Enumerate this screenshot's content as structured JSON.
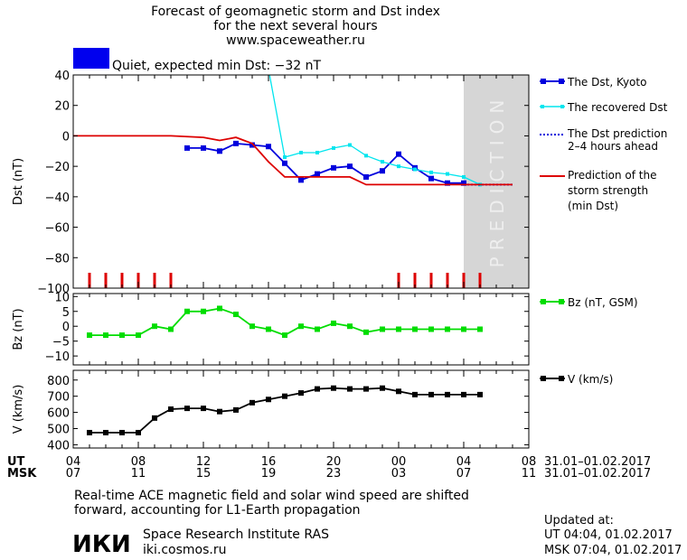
{
  "header": {
    "title_line1": "Forecast of geomagnetic storm and Dst index",
    "title_line2": "for the next several hours",
    "site": "www.spaceweather.ru",
    "status": "Quiet, expected min Dst: −32 nT",
    "status_color": "#0000ee"
  },
  "prediction_label": "PREDICTION",
  "footer": {
    "note_line1": "Real-time ACE magnetic field and solar wind speed are shifted",
    "note_line2": "forward, accounting for L1-Earth propagation",
    "institute_logo": "ИКИ",
    "institute": "Space Research Institute RAS",
    "institute_url": "iki.cosmos.ru",
    "updated_title": "Updated at:",
    "updated_ut": "UT   04:04, 01.02.2017",
    "updated_msk": "MSK 07:04, 01.02.2017"
  },
  "chart_data": [
    {
      "type": "line",
      "ylabel": "Dst (nT)",
      "ylim": [
        -100,
        40
      ],
      "yticks": [
        40,
        20,
        0,
        -20,
        -40,
        -60,
        -80,
        -100
      ],
      "xlim": [
        4,
        32
      ],
      "x_unit": "hours from 00 UT 31.01.2017",
      "prediction_start": 28,
      "series": [
        {
          "name": "The Dst, Kyoto",
          "color": "#0000dd",
          "marker": "square",
          "x": [
            11,
            12,
            13,
            14,
            15,
            16,
            17,
            18,
            19,
            20,
            21,
            22,
            23,
            24,
            25,
            26,
            27,
            28
          ],
          "y": [
            -8,
            -8,
            -10,
            -5,
            -6,
            -7,
            -18,
            -29,
            -25,
            -21,
            -20,
            -27,
            -23,
            -12,
            -21,
            -28,
            -31,
            -31
          ]
        },
        {
          "name": "The recovered Dst",
          "color": "#00e5ee",
          "marker": "dot",
          "x": [
            16,
            17,
            18,
            19,
            20,
            21,
            22,
            23,
            24,
            25,
            26,
            27,
            28,
            29
          ],
          "y": [
            44,
            -14,
            -11,
            -11,
            -8,
            -6,
            -13,
            -17,
            -20,
            -22,
            -24,
            -25,
            -27,
            -32
          ]
        },
        {
          "name": "The Dst prediction 2–4 hours ahead",
          "color": "#0000dd",
          "marker": "none",
          "style": "dotted",
          "x": [
            28,
            29,
            30,
            31
          ],
          "y": [
            -32,
            -32,
            -32,
            -32
          ]
        },
        {
          "name": "Prediction of the storm strength (min Dst)",
          "color": "#dd0000",
          "marker": "none",
          "x": [
            4,
            10,
            12,
            13,
            14,
            15,
            16,
            17,
            18,
            19,
            20,
            21,
            22,
            23,
            24,
            25,
            26,
            27,
            28,
            29,
            30,
            31
          ],
          "y": [
            0,
            0,
            -1,
            -3,
            -1,
            -5,
            -17,
            -27,
            -27,
            -27,
            -27,
            -27,
            -32,
            -32,
            -32,
            -32,
            -32,
            -32,
            -32,
            -32,
            -32,
            -32
          ]
        }
      ],
      "event_markers_x": [
        5,
        6,
        7,
        8,
        9,
        10,
        24,
        25,
        26,
        27,
        28,
        29
      ],
      "event_marker_color": "#dd0000"
    },
    {
      "type": "line",
      "ylabel": "Bz (nT)",
      "ylim": [
        -13,
        11
      ],
      "yticks": [
        10,
        5,
        0,
        -5,
        -10
      ],
      "xlim": [
        4,
        32
      ],
      "series": [
        {
          "name": "Bz (nT, GSM)",
          "color": "#00dd00",
          "marker": "square",
          "x": [
            5,
            6,
            7,
            8,
            9,
            10,
            11,
            12,
            13,
            14,
            15,
            16,
            17,
            18,
            19,
            20,
            21,
            22,
            23,
            24,
            25,
            26,
            27,
            28,
            29
          ],
          "y": [
            -3,
            -3,
            -3,
            -3,
            0,
            -1,
            5,
            5,
            6,
            4,
            0,
            -1,
            -3,
            0,
            -1,
            1,
            0,
            -2,
            -1,
            -1,
            -1,
            -1,
            -1,
            -1,
            -1
          ]
        }
      ]
    },
    {
      "type": "line",
      "ylabel": "V (km/s)",
      "ylim": [
        380,
        860
      ],
      "yticks": [
        800,
        700,
        600,
        500,
        400
      ],
      "xlim": [
        4,
        32
      ],
      "series": [
        {
          "name": "V (km/s)",
          "color": "#000000",
          "marker": "square",
          "x": [
            5,
            6,
            7,
            8,
            9,
            10,
            11,
            12,
            13,
            14,
            15,
            16,
            17,
            18,
            19,
            20,
            21,
            22,
            23,
            24,
            25,
            26,
            27,
            28,
            29
          ],
          "y": [
            475,
            475,
            475,
            475,
            565,
            620,
            625,
            625,
            605,
            615,
            660,
            680,
            700,
            720,
            745,
            750,
            745,
            745,
            750,
            730,
            710,
            710,
            710,
            710,
            710
          ]
        }
      ]
    }
  ],
  "time_axis": {
    "ut_label": "UT",
    "msk_label": "MSK",
    "ticks_x": [
      4,
      8,
      12,
      16,
      20,
      24,
      28,
      32
    ],
    "ut_ticks": [
      "04",
      "08",
      "12",
      "16",
      "20",
      "00",
      "04",
      "08"
    ],
    "msk_ticks": [
      "07",
      "11",
      "15",
      "19",
      "23",
      "03",
      "07",
      "11"
    ],
    "ut_range": "31.01–01.02.2017",
    "msk_range": "31.01–01.02.2017"
  }
}
